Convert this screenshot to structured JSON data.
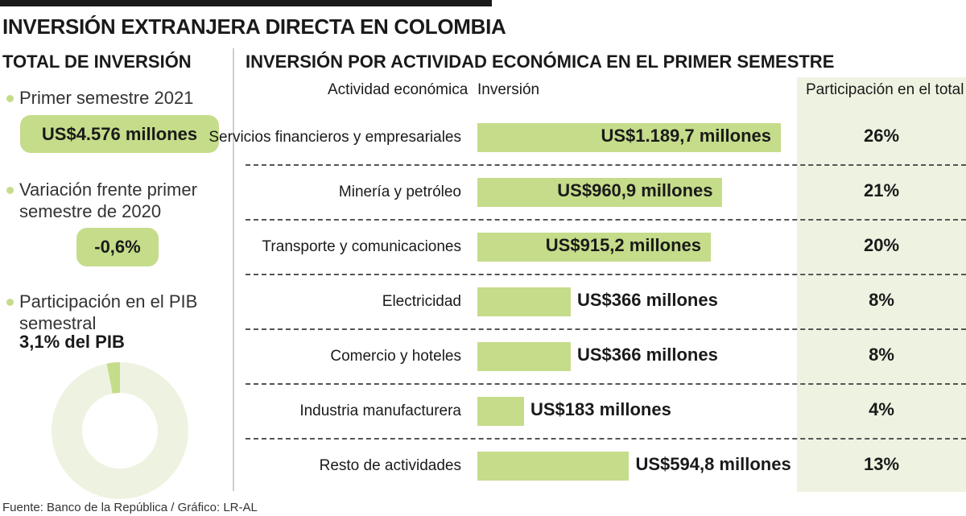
{
  "title": "INVERSIÓN EXTRANJERA DIRECTA EN COLOMBIA",
  "left_panel": {
    "title": "TOTAL DE INVERSIÓN",
    "first_label": "Primer semestre 2021",
    "first_value": "US$4.576 millones",
    "variation_label_1": "Variación frente primer",
    "variation_label_2": "semestre de 2020",
    "variation_value": "-0,6%",
    "pib_label_1": "Participación en el PIB",
    "pib_label_2": "semestral",
    "pib_value": "3,1% del PIB",
    "pib_share_percent": 3.1
  },
  "colors": {
    "accent": "#c5dc8a",
    "donut_rest": "#eef3e1",
    "column_bg": "#eef3e1"
  },
  "chart_data": {
    "type": "bar",
    "orientation": "horizontal",
    "title": "INVERSIÓN POR ACTIVIDAD ECONÓMICA EN EL PRIMER SEMESTRE",
    "column_headers": [
      "Actividad económica",
      "Inversión",
      "Participación en el total"
    ],
    "categories": [
      "Servicios financieros y empresariales",
      "Minería y petróleo",
      "Transporte y comunicaciones",
      "Electricidad",
      "Comercio y hoteles",
      "Industria manufacturera",
      "Resto de actividades"
    ],
    "values": [
      1189.7,
      960.9,
      915.2,
      366,
      366,
      183,
      594.8
    ],
    "value_labels": [
      "US$1.189,7 millones",
      "US$960,9 millones",
      "US$915,2 millones",
      "US$366 millones",
      "US$366 millones",
      "US$183 millones",
      "US$594,8 millones"
    ],
    "shares": [
      "26%",
      "21%",
      "20%",
      "8%",
      "8%",
      "4%",
      "13%"
    ]
  },
  "source": "Fuente: Banco de la República / Gráfico: LR-AL"
}
